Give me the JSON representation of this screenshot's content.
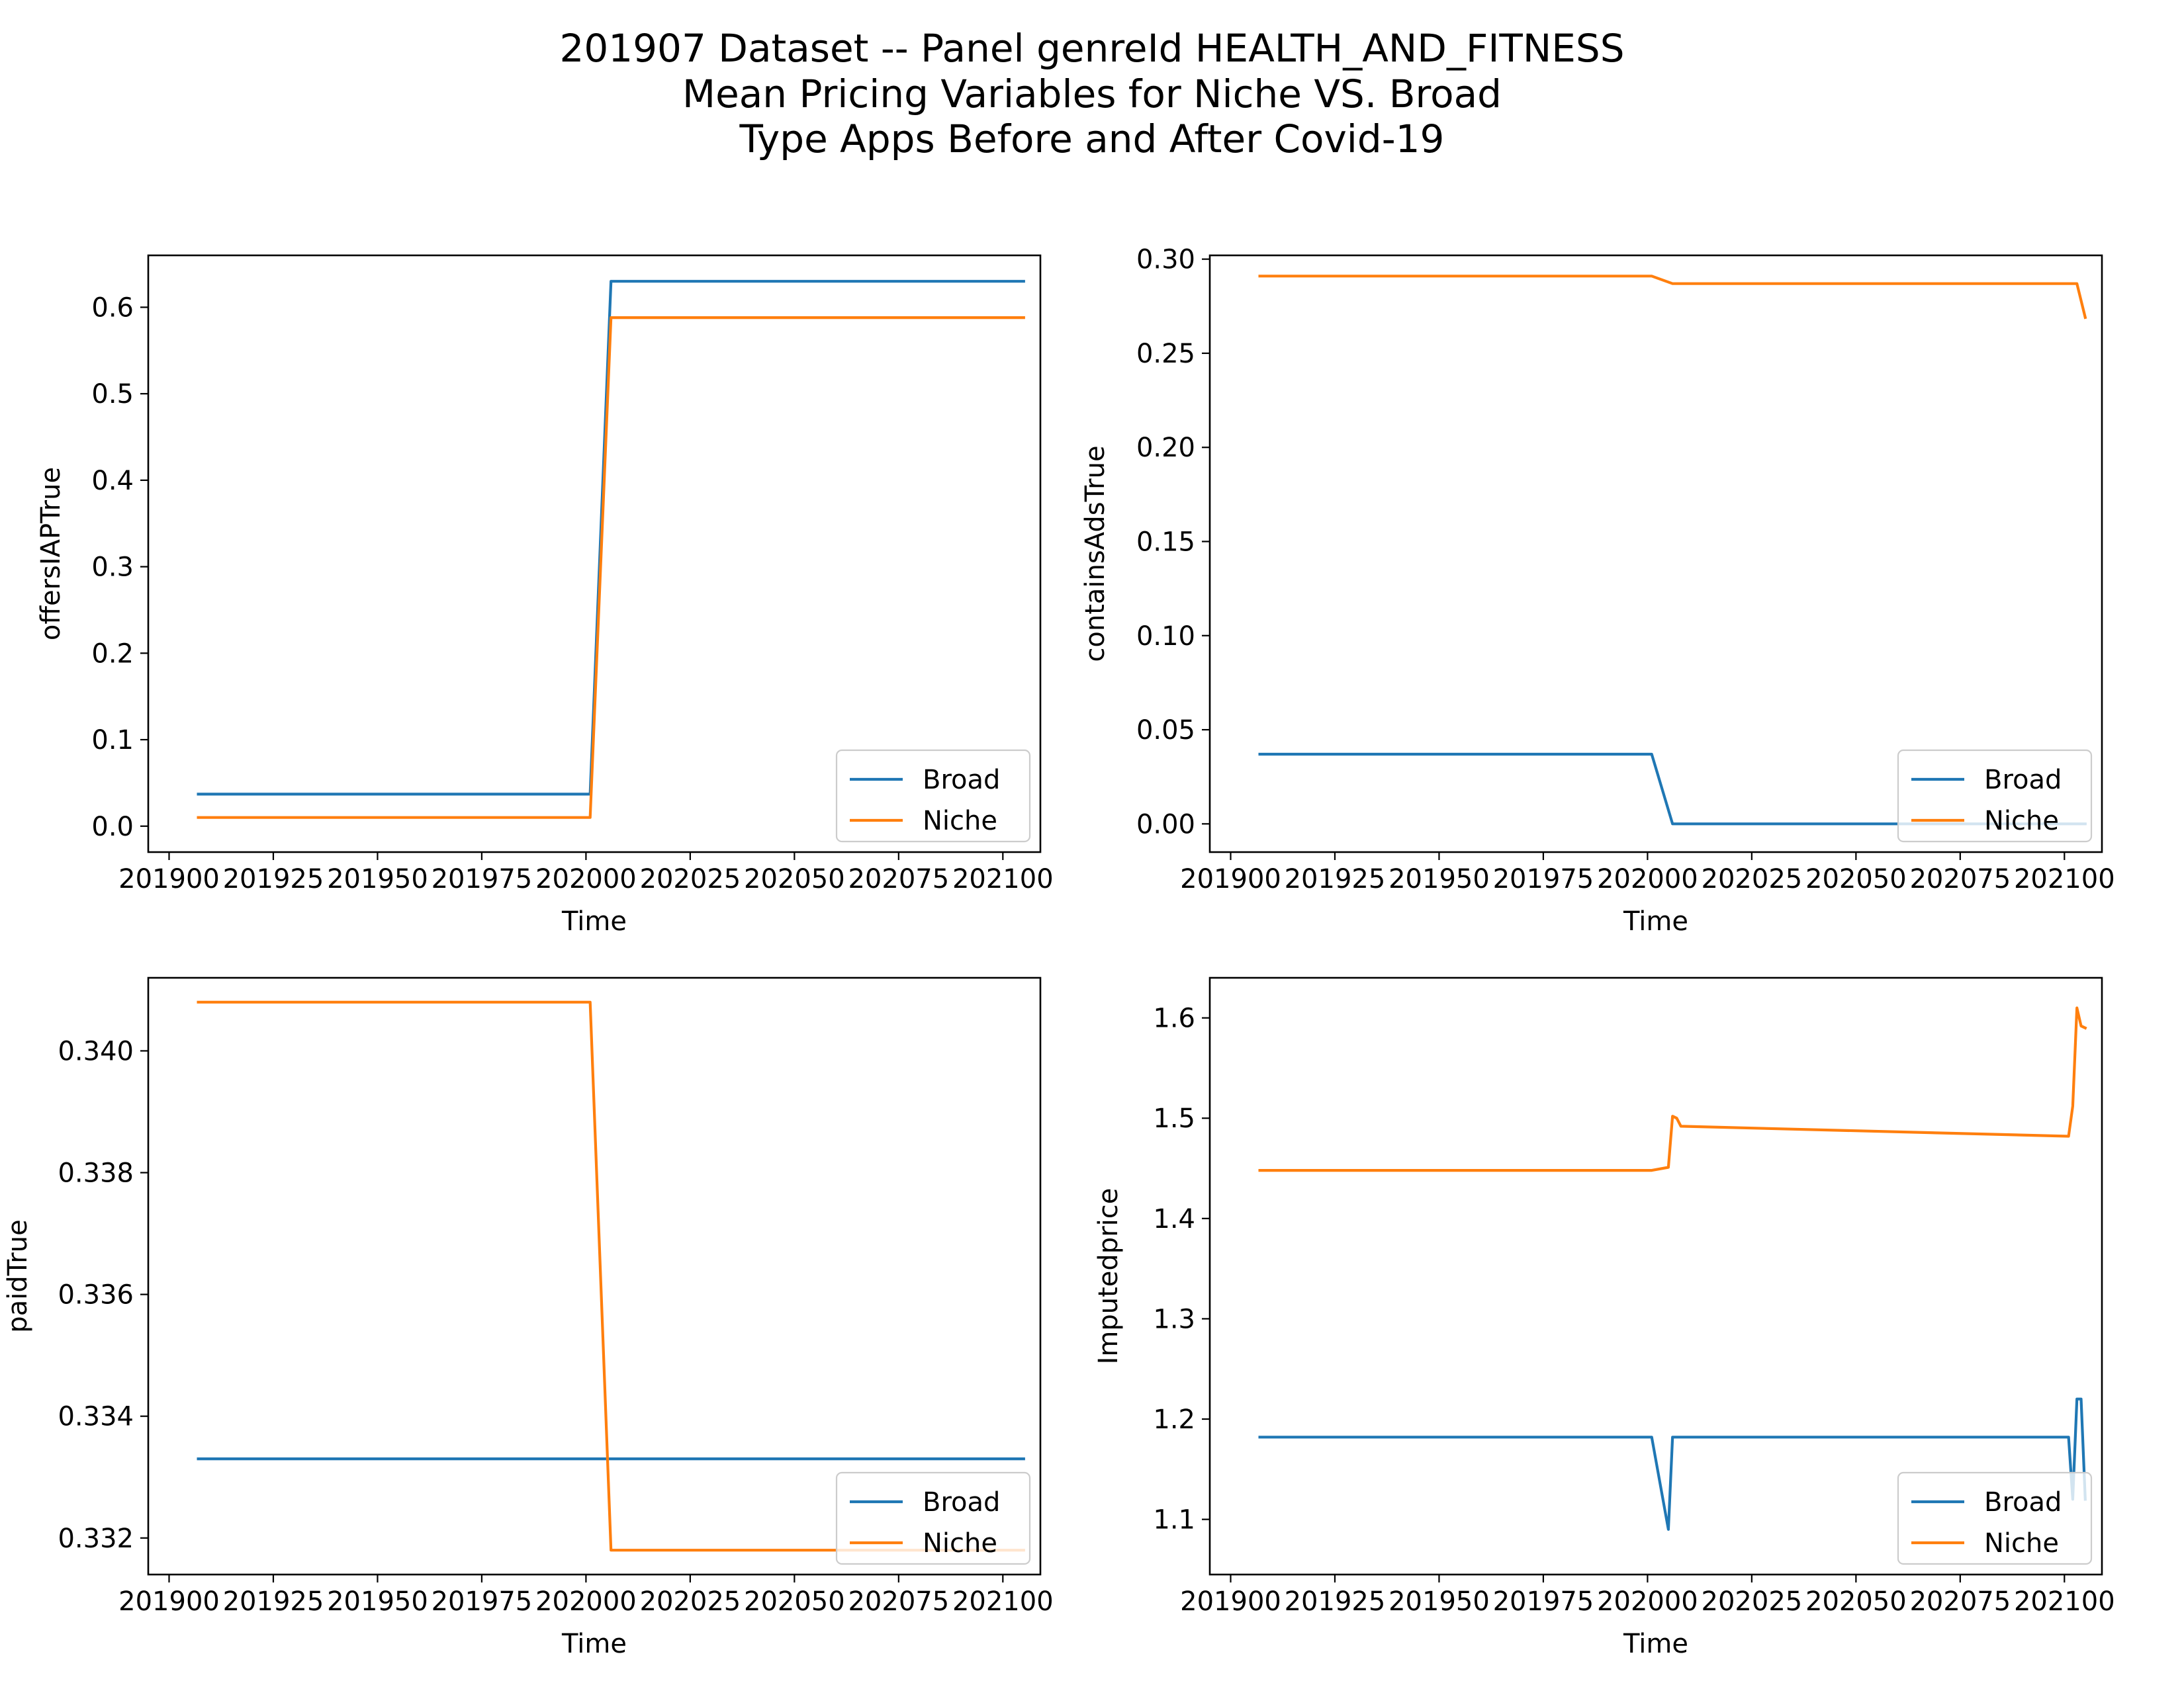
{
  "figure": {
    "title_lines": [
      "201907 Dataset -- Panel genreId HEALTH_AND_FITNESS",
      "Mean Pricing Variables for Niche VS. Broad",
      "Type Apps Before and After Covid-19"
    ]
  },
  "colors": {
    "Broad": "#1f77b4",
    "Niche": "#ff7f0e"
  },
  "chart_data": [
    {
      "type": "line",
      "xlabel": "Time",
      "ylabel": "offersIAPTrue",
      "xlim": [
        201895,
        202109
      ],
      "ylim": [
        -0.03,
        0.66
      ],
      "xticks": [
        201900,
        201925,
        201950,
        201975,
        202000,
        202025,
        202050,
        202075,
        202100
      ],
      "yticks": [
        0.0,
        0.1,
        0.2,
        0.3,
        0.4,
        0.5,
        0.6
      ],
      "ytick_labels": [
        "0.0",
        "0.1",
        "0.2",
        "0.3",
        "0.4",
        "0.5",
        "0.6"
      ],
      "legend": "lower right",
      "series": [
        {
          "name": "Broad",
          "x": [
            201907,
            202001,
            202006,
            202105
          ],
          "y": [
            0.037,
            0.037,
            0.63,
            0.63
          ]
        },
        {
          "name": "Niche",
          "x": [
            201907,
            202001,
            202006,
            202105
          ],
          "y": [
            0.01,
            0.01,
            0.588,
            0.588
          ]
        }
      ]
    },
    {
      "type": "line",
      "xlabel": "Time",
      "ylabel": "containsAdsTrue",
      "xlim": [
        201895,
        202109
      ],
      "ylim": [
        -0.015,
        0.302
      ],
      "xticks": [
        201900,
        201925,
        201950,
        201975,
        202000,
        202025,
        202050,
        202075,
        202100
      ],
      "yticks": [
        0.0,
        0.05,
        0.1,
        0.15,
        0.2,
        0.25,
        0.3
      ],
      "ytick_labels": [
        "0.00",
        "0.05",
        "0.10",
        "0.15",
        "0.20",
        "0.25",
        "0.30"
      ],
      "legend": "lower right",
      "series": [
        {
          "name": "Broad",
          "x": [
            201907,
            202001,
            202006,
            202105
          ],
          "y": [
            0.037,
            0.037,
            0.0,
            0.0
          ]
        },
        {
          "name": "Niche",
          "x": [
            201907,
            202001,
            202006,
            202103,
            202105
          ],
          "y": [
            0.291,
            0.291,
            0.287,
            0.287,
            0.269
          ]
        }
      ]
    },
    {
      "type": "line",
      "xlabel": "Time",
      "ylabel": "paidTrue",
      "xlim": [
        201895,
        202109
      ],
      "ylim": [
        0.3314,
        0.3412
      ],
      "xticks": [
        201900,
        201925,
        201950,
        201975,
        202000,
        202025,
        202050,
        202075,
        202100
      ],
      "yticks": [
        0.332,
        0.334,
        0.336,
        0.338,
        0.34
      ],
      "ytick_labels": [
        "0.332",
        "0.334",
        "0.336",
        "0.338",
        "0.340"
      ],
      "legend": "lower right",
      "series": [
        {
          "name": "Broad",
          "x": [
            201907,
            202105
          ],
          "y": [
            0.3333,
            0.3333
          ]
        },
        {
          "name": "Niche",
          "x": [
            201907,
            202001,
            202006,
            202105
          ],
          "y": [
            0.3408,
            0.3408,
            0.3318,
            0.3318
          ]
        }
      ]
    },
    {
      "type": "line",
      "xlabel": "Time",
      "ylabel": "Imputedprice",
      "xlim": [
        201895,
        202109
      ],
      "ylim": [
        1.045,
        1.64
      ],
      "xticks": [
        201900,
        201925,
        201950,
        201975,
        202000,
        202025,
        202050,
        202075,
        202100
      ],
      "yticks": [
        1.1,
        1.2,
        1.3,
        1.4,
        1.5,
        1.6
      ],
      "ytick_labels": [
        "1.1",
        "1.2",
        "1.3",
        "1.4",
        "1.5",
        "1.6"
      ],
      "legend": "lower right",
      "series": [
        {
          "name": "Broad",
          "x": [
            201907,
            202001,
            202005,
            202006,
            202101,
            202102,
            202103,
            202104,
            202105
          ],
          "y": [
            1.182,
            1.182,
            1.09,
            1.182,
            1.182,
            1.12,
            1.22,
            1.22,
            1.12
          ]
        },
        {
          "name": "Niche",
          "x": [
            201907,
            202001,
            202005,
            202006,
            202007,
            202008,
            202101,
            202102,
            202103,
            202104,
            202105
          ],
          "y": [
            1.448,
            1.448,
            1.451,
            1.502,
            1.5,
            1.492,
            1.482,
            1.512,
            1.61,
            1.592,
            1.59
          ]
        }
      ]
    }
  ]
}
